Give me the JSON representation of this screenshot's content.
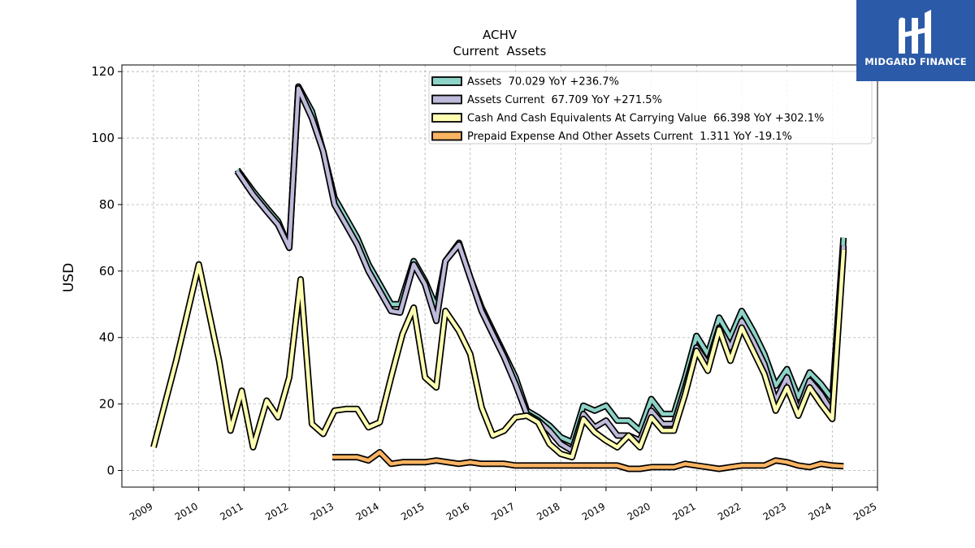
{
  "chart_data": {
    "type": "line",
    "title": "ACHV",
    "subtitle": "Current  Assets",
    "ylabel": "USD",
    "xlabel": "",
    "ylim": [
      -5,
      122
    ],
    "xlim": [
      2008.3,
      2025.0
    ],
    "yticks": [
      0,
      20,
      40,
      60,
      80,
      100,
      120
    ],
    "xticks": [
      "2009",
      "2010",
      "2011",
      "2012",
      "2013",
      "2014",
      "2015",
      "2016",
      "2017",
      "2018",
      "2019",
      "2020",
      "2021",
      "2022",
      "2023",
      "2024",
      "2025"
    ],
    "grid": true,
    "legend_position": "top-right",
    "series": [
      {
        "name": "Assets  70.029 YoY +236.7%",
        "color": "#8dd3c7",
        "values": [
          [
            2010.85,
            90.5
          ],
          [
            2011.2,
            84
          ],
          [
            2011.5,
            79
          ],
          [
            2011.75,
            75
          ],
          [
            2012.0,
            67
          ],
          [
            2012.2,
            115.5
          ],
          [
            2012.5,
            108
          ],
          [
            2012.75,
            96
          ],
          [
            2013.0,
            82
          ],
          [
            2013.25,
            76
          ],
          [
            2013.5,
            70
          ],
          [
            2013.75,
            62
          ],
          [
            2014.0,
            56
          ],
          [
            2014.25,
            50
          ],
          [
            2014.45,
            50
          ],
          [
            2014.75,
            63
          ],
          [
            2015.0,
            57
          ],
          [
            2015.25,
            49
          ],
          [
            2015.45,
            63
          ],
          [
            2015.75,
            68.5
          ],
          [
            2016.0,
            58
          ],
          [
            2016.25,
            49
          ],
          [
            2016.5,
            42
          ],
          [
            2016.75,
            35
          ],
          [
            2017.0,
            28
          ],
          [
            2017.25,
            18
          ],
          [
            2017.5,
            16
          ],
          [
            2017.75,
            13.5
          ],
          [
            2018.0,
            10
          ],
          [
            2018.25,
            8.5
          ],
          [
            2018.5,
            19.5
          ],
          [
            2018.75,
            18
          ],
          [
            2019.0,
            19.5
          ],
          [
            2019.25,
            15
          ],
          [
            2019.5,
            15
          ],
          [
            2019.75,
            12
          ],
          [
            2020.0,
            21.5
          ],
          [
            2020.25,
            17
          ],
          [
            2020.5,
            17
          ],
          [
            2020.75,
            28
          ],
          [
            2021.0,
            40.5
          ],
          [
            2021.25,
            35
          ],
          [
            2021.5,
            46
          ],
          [
            2021.75,
            40
          ],
          [
            2022.0,
            48
          ],
          [
            2022.25,
            42
          ],
          [
            2022.5,
            35
          ],
          [
            2022.75,
            25.5
          ],
          [
            2023.0,
            30.5
          ],
          [
            2023.25,
            22
          ],
          [
            2023.5,
            29.5
          ],
          [
            2023.75,
            26
          ],
          [
            2024.0,
            21.5
          ],
          [
            2024.25,
            70.03
          ]
        ]
      },
      {
        "name": "Assets Current  67.709 YoY +271.5%",
        "color": "#bebada",
        "values": [
          [
            2010.85,
            90
          ],
          [
            2011.2,
            83
          ],
          [
            2011.5,
            78
          ],
          [
            2011.75,
            74
          ],
          [
            2012.0,
            67
          ],
          [
            2012.2,
            115
          ],
          [
            2012.5,
            106
          ],
          [
            2012.75,
            96
          ],
          [
            2013.0,
            80
          ],
          [
            2013.25,
            74
          ],
          [
            2013.5,
            68
          ],
          [
            2013.75,
            60
          ],
          [
            2014.0,
            54
          ],
          [
            2014.25,
            48
          ],
          [
            2014.45,
            47.5
          ],
          [
            2014.75,
            62
          ],
          [
            2015.0,
            56
          ],
          [
            2015.25,
            45
          ],
          [
            2015.45,
            63
          ],
          [
            2015.75,
            68
          ],
          [
            2016.0,
            58
          ],
          [
            2016.25,
            48
          ],
          [
            2016.5,
            41
          ],
          [
            2016.75,
            34
          ],
          [
            2017.0,
            26
          ],
          [
            2017.25,
            17
          ],
          [
            2017.5,
            15
          ],
          [
            2017.75,
            12
          ],
          [
            2018.0,
            8
          ],
          [
            2018.25,
            6
          ],
          [
            2018.5,
            17
          ],
          [
            2018.75,
            13
          ],
          [
            2019.0,
            15
          ],
          [
            2019.25,
            10.5
          ],
          [
            2019.5,
            10.5
          ],
          [
            2019.75,
            9
          ],
          [
            2020.0,
            18
          ],
          [
            2020.25,
            14
          ],
          [
            2020.5,
            14
          ],
          [
            2020.75,
            25
          ],
          [
            2021.0,
            37
          ],
          [
            2021.25,
            32
          ],
          [
            2021.5,
            43
          ],
          [
            2021.75,
            37
          ],
          [
            2022.0,
            45
          ],
          [
            2022.25,
            39
          ],
          [
            2022.5,
            32
          ],
          [
            2022.75,
            21
          ],
          [
            2023.0,
            28
          ],
          [
            2023.25,
            18
          ],
          [
            2023.5,
            27
          ],
          [
            2023.75,
            23
          ],
          [
            2024.0,
            17.5
          ],
          [
            2024.25,
            67.71
          ]
        ]
      },
      {
        "name": "Cash And Cash Equivalents At Carrying Value  66.398 YoY +302.1%",
        "color": "#ffffb3",
        "values": [
          [
            2009.0,
            7
          ],
          [
            2009.5,
            33
          ],
          [
            2010.0,
            62
          ],
          [
            2010.45,
            33
          ],
          [
            2010.7,
            12
          ],
          [
            2010.95,
            24
          ],
          [
            2011.2,
            7
          ],
          [
            2011.5,
            21
          ],
          [
            2011.75,
            16
          ],
          [
            2012.0,
            28
          ],
          [
            2012.25,
            57.5
          ],
          [
            2012.5,
            14
          ],
          [
            2012.75,
            11
          ],
          [
            2013.0,
            18
          ],
          [
            2013.25,
            18.5
          ],
          [
            2013.5,
            18.5
          ],
          [
            2013.75,
            13
          ],
          [
            2014.0,
            14.5
          ],
          [
            2014.25,
            28
          ],
          [
            2014.5,
            41
          ],
          [
            2014.75,
            49
          ],
          [
            2015.0,
            28
          ],
          [
            2015.25,
            25
          ],
          [
            2015.45,
            48
          ],
          [
            2015.75,
            42
          ],
          [
            2016.0,
            35
          ],
          [
            2016.25,
            19
          ],
          [
            2016.5,
            10.5
          ],
          [
            2016.75,
            12
          ],
          [
            2017.0,
            16
          ],
          [
            2017.25,
            16.5
          ],
          [
            2017.5,
            14.5
          ],
          [
            2017.75,
            8
          ],
          [
            2018.0,
            5
          ],
          [
            2018.25,
            4
          ],
          [
            2018.5,
            15.5
          ],
          [
            2018.75,
            11.5
          ],
          [
            2019.0,
            9
          ],
          [
            2019.25,
            7
          ],
          [
            2019.5,
            10.5
          ],
          [
            2019.75,
            7
          ],
          [
            2020.0,
            16
          ],
          [
            2020.25,
            12
          ],
          [
            2020.5,
            12
          ],
          [
            2020.75,
            23
          ],
          [
            2021.0,
            36
          ],
          [
            2021.25,
            30
          ],
          [
            2021.5,
            42.5
          ],
          [
            2021.75,
            33
          ],
          [
            2022.0,
            43
          ],
          [
            2022.25,
            36
          ],
          [
            2022.5,
            29
          ],
          [
            2022.75,
            18
          ],
          [
            2023.0,
            25
          ],
          [
            2023.25,
            16.5
          ],
          [
            2023.5,
            25
          ],
          [
            2023.75,
            20
          ],
          [
            2024.0,
            15.5
          ],
          [
            2024.25,
            66.4
          ]
        ]
      },
      {
        "name": "Prepaid Expense And Other Assets Current  1.311 YoY -19.1%",
        "color": "#fdb462",
        "values": [
          [
            2012.95,
            4
          ],
          [
            2013.25,
            4
          ],
          [
            2013.5,
            4
          ],
          [
            2013.75,
            3
          ],
          [
            2014.0,
            5.5
          ],
          [
            2014.25,
            2
          ],
          [
            2014.5,
            2.5
          ],
          [
            2014.75,
            2.5
          ],
          [
            2015.0,
            2.5
          ],
          [
            2015.25,
            3
          ],
          [
            2015.5,
            2.5
          ],
          [
            2015.75,
            2
          ],
          [
            2016.0,
            2.5
          ],
          [
            2016.25,
            2
          ],
          [
            2016.5,
            2
          ],
          [
            2016.75,
            2
          ],
          [
            2017.0,
            1.5
          ],
          [
            2017.25,
            1.5
          ],
          [
            2017.5,
            1.5
          ],
          [
            2017.75,
            1.5
          ],
          [
            2018.0,
            1.5
          ],
          [
            2018.25,
            1.5
          ],
          [
            2018.5,
            1.5
          ],
          [
            2018.75,
            1.5
          ],
          [
            2019.0,
            1.5
          ],
          [
            2019.25,
            1.5
          ],
          [
            2019.5,
            0.5
          ],
          [
            2019.75,
            0.5
          ],
          [
            2020.0,
            1
          ],
          [
            2020.25,
            1
          ],
          [
            2020.5,
            1
          ],
          [
            2020.75,
            2
          ],
          [
            2021.0,
            1.5
          ],
          [
            2021.25,
            1
          ],
          [
            2021.5,
            0.5
          ],
          [
            2021.75,
            1
          ],
          [
            2022.0,
            1.5
          ],
          [
            2022.25,
            1.5
          ],
          [
            2022.5,
            1.5
          ],
          [
            2022.75,
            3
          ],
          [
            2023.0,
            2.5
          ],
          [
            2023.25,
            1.5
          ],
          [
            2023.5,
            1
          ],
          [
            2023.75,
            2
          ],
          [
            2024.0,
            1.5
          ],
          [
            2024.25,
            1.31
          ]
        ]
      }
    ]
  },
  "logo": {
    "text": "MIDGARD FINANCE",
    "bg_color": "#2b5aa8"
  }
}
